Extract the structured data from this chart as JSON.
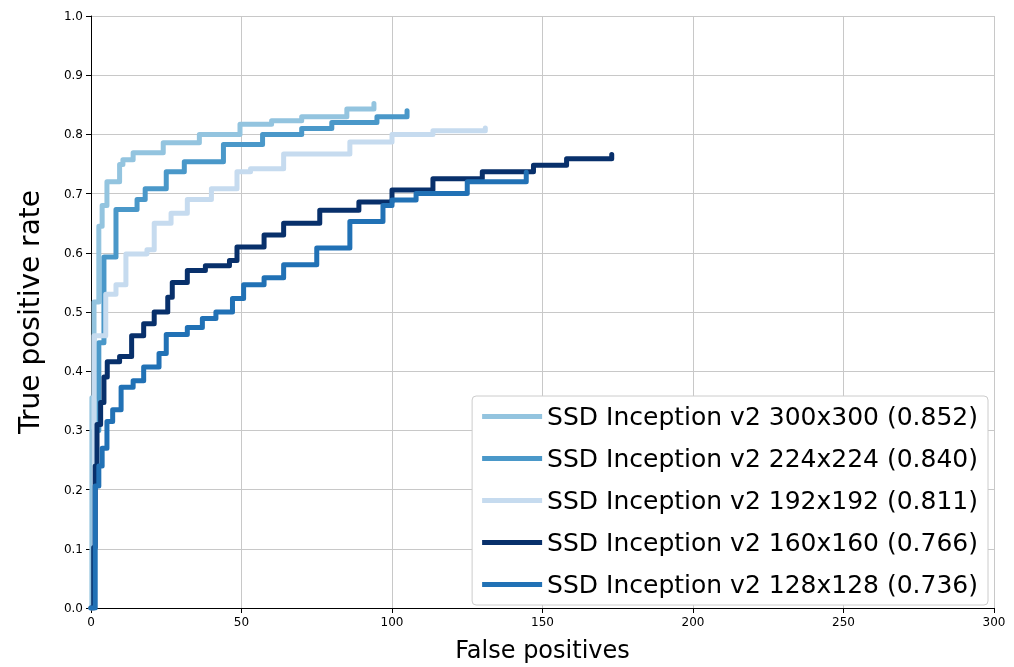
{
  "chart_data": {
    "type": "step",
    "xlabel": "False positives",
    "ylabel": "True positive rate",
    "xlim": [
      0,
      300
    ],
    "xticks": [
      0,
      50,
      100,
      150,
      200,
      250,
      300
    ],
    "ylim": [
      0,
      1
    ],
    "yticks": [
      {
        "value": 0,
        "label": "0.0"
      },
      {
        "value": 0.1,
        "label": "0.1"
      },
      {
        "value": 0.2,
        "label": "0.2"
      },
      {
        "value": 0.3,
        "label": "0.3"
      },
      {
        "value": 0.4,
        "label": "0.4"
      },
      {
        "value": 0.5,
        "label": "0.5"
      },
      {
        "value": 0.6,
        "label": "0.6"
      },
      {
        "value": 0.7,
        "label": "0.7"
      },
      {
        "value": 0.8,
        "label": "0.8"
      },
      {
        "value": 0.9,
        "label": "0.9"
      },
      {
        "value": 1,
        "label": "1.0"
      }
    ],
    "grid": true,
    "legend": "bottom right",
    "marker": "none",
    "line_style": "solid",
    "series": [
      {
        "name": "SSD Inception v2 300x300 (0.852)",
        "color": "#93c4df",
        "x": [
          0,
          0.3,
          1,
          2.6,
          3.7,
          5.3,
          9.5,
          10.6,
          14,
          24,
          36,
          49.5,
          60,
          70,
          85,
          94
        ],
        "values": [
          0,
          0.355,
          0.517,
          0.645,
          0.68,
          0.72,
          0.749,
          0.757,
          0.769,
          0.786,
          0.8,
          0.817,
          0.823,
          0.83,
          0.843,
          0.852
        ]
      },
      {
        "name": "SSD Inception v2 224x224 (0.840)",
        "color": "#4a98c9",
        "x": [
          0,
          1,
          2.6,
          4.3,
          8.3,
          15.3,
          18,
          25,
          31,
          44,
          57,
          70,
          80,
          95,
          105
        ],
        "values": [
          0,
          0.3,
          0.448,
          0.593,
          0.673,
          0.69,
          0.708,
          0.737,
          0.754,
          0.783,
          0.8,
          0.81,
          0.82,
          0.83,
          0.84
        ]
      },
      {
        "name": "SSD Inception v2 192x192 (0.811)",
        "color": "#c6dbef",
        "x": [
          0,
          1,
          4.9,
          8.3,
          11.6,
          18.6,
          21,
          26.6,
          32,
          40,
          48.5,
          53,
          64,
          86,
          100,
          113.6,
          131
        ],
        "values": [
          0,
          0.46,
          0.53,
          0.546,
          0.598,
          0.605,
          0.65,
          0.667,
          0.69,
          0.708,
          0.737,
          0.742,
          0.767,
          0.787,
          0.8,
          0.806,
          0.811
        ]
      },
      {
        "name": "SSD Inception v2 160x160 (0.766)",
        "color": "#08306b",
        "x": [
          0,
          0.9,
          1.4,
          2,
          3.2,
          4.3,
          5.4,
          9.5,
          13.5,
          17.5,
          21,
          25.5,
          27,
          32,
          38,
          46,
          48.5,
          57.5,
          64,
          76,
          89,
          100,
          113.6,
          130,
          147,
          158,
          173
        ],
        "values": [
          0,
          0.102,
          0.24,
          0.31,
          0.347,
          0.39,
          0.416,
          0.425,
          0.46,
          0.48,
          0.5,
          0.525,
          0.55,
          0.57,
          0.578,
          0.587,
          0.61,
          0.63,
          0.65,
          0.672,
          0.686,
          0.706,
          0.725,
          0.737,
          0.748,
          0.759,
          0.766
        ]
      },
      {
        "name": "SSD Inception v2 128x128 (0.736)",
        "color": "#2171b5",
        "x": [
          0,
          1.4,
          2.6,
          3.7,
          5.3,
          7.2,
          10,
          14,
          17.5,
          22.6,
          25,
          32,
          37,
          41.5,
          47,
          50.7,
          57.5,
          64,
          75,
          86,
          97,
          100,
          108,
          125,
          144.6
        ],
        "values": [
          0,
          0.206,
          0.24,
          0.27,
          0.315,
          0.335,
          0.373,
          0.384,
          0.407,
          0.43,
          0.462,
          0.474,
          0.489,
          0.5,
          0.523,
          0.546,
          0.558,
          0.58,
          0.608,
          0.653,
          0.68,
          0.689,
          0.7,
          0.72,
          0.736
        ]
      }
    ]
  }
}
